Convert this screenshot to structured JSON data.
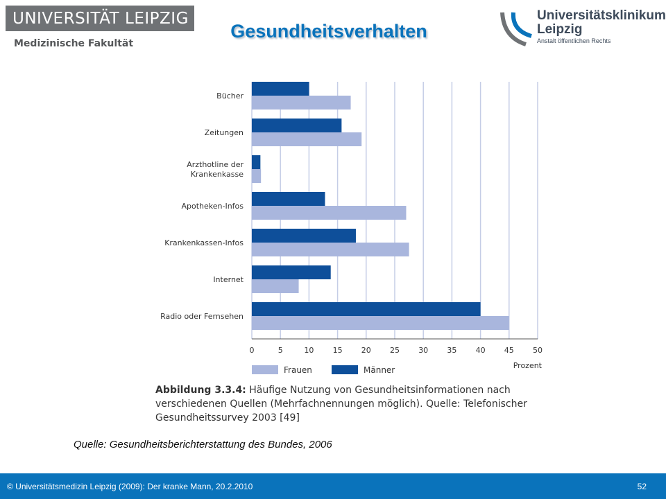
{
  "header": {
    "logo_left": "UNIVERSITÄT LEIPZIG",
    "logo_left_sub": "Medizinische Fakultät",
    "title": "Gesundheitsverhalten",
    "logo_right_line1": "Universitätsklinikum",
    "logo_right_line2": "Leipzig",
    "logo_right_line3": "Anstalt öffentlichen Rechts"
  },
  "chart_data": {
    "type": "bar",
    "orientation": "horizontal",
    "categories": [
      "Bücher",
      "Zeitungen",
      "Arzthotline der Krankenkasse",
      "Apotheken-Infos",
      "Krankenkassen-Infos",
      "Internet",
      "Radio oder Fernsehen"
    ],
    "series": [
      {
        "name": "Männer",
        "color": "#0e4f9a",
        "values": [
          10,
          15.7,
          1.5,
          12.8,
          18.2,
          13.8,
          40
        ]
      },
      {
        "name": "Frauen",
        "color": "#a9b6dd",
        "values": [
          17.3,
          19.2,
          1.6,
          27,
          27.5,
          8.2,
          45
        ]
      }
    ],
    "xlabel": "Prozent",
    "xlim": [
      0,
      50
    ],
    "xticks": [
      0,
      5,
      10,
      15,
      20,
      25,
      30,
      35,
      40,
      45,
      50
    ],
    "grid": true,
    "legend": "bottom-left"
  },
  "caption": {
    "label": "Abbildung 3.3.4:",
    "text": " Häufige Nutzung von Gesundheitsinformationen nach verschiedenen Quellen (Mehrfachnennungen möglich). Quelle: Telefonischer Gesundheitssurvey 2003 [49]"
  },
  "source": "Quelle: Gesundheitsberichterstattung des Bundes, 2006",
  "footer": {
    "left": "© Universitätsmedizin Leipzig (2009): Der kranke Mann, 20.2.2010",
    "page": "52"
  },
  "colors": {
    "accent": "#0a73bb",
    "footer_bg": "#0a73bb"
  }
}
